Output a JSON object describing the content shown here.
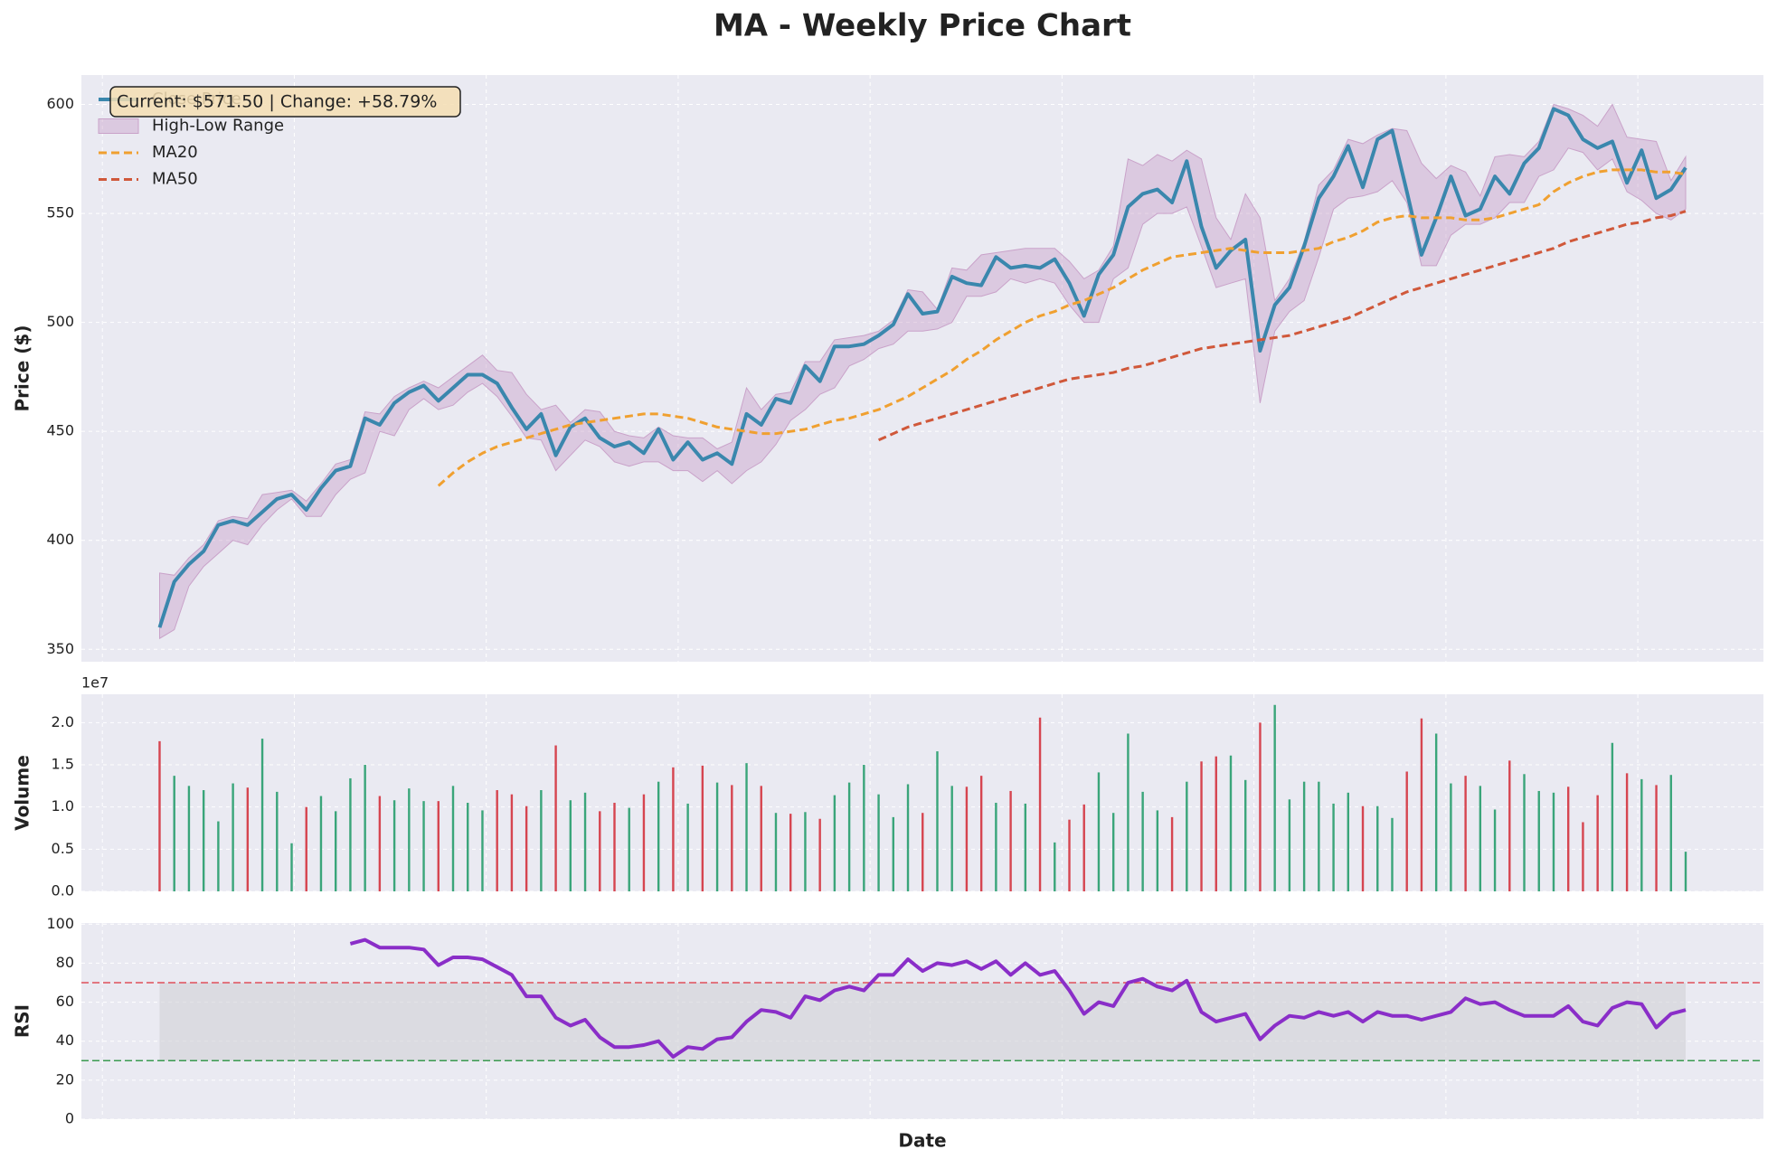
{
  "chart_data": [
    {
      "type": "line",
      "title": "MA - Weekly Price Chart",
      "ylabel": "Price ($)",
      "annotation": "Current: $571.50 | Change: +58.79%",
      "ylim": [
        344.3,
        613.5
      ],
      "yticks": [
        350,
        400,
        450,
        500,
        550,
        600
      ],
      "grid": true,
      "legend": "upper left",
      "range": {
        "name": "High-Low Range",
        "color": "#c9a2c9",
        "high": [
          385,
          384,
          392,
          398,
          409,
          411,
          410,
          421,
          422,
          423,
          418,
          426,
          435,
          437,
          459,
          458,
          466,
          470,
          473,
          470,
          475,
          480,
          485,
          478,
          477,
          467,
          460,
          462,
          454,
          460,
          459,
          450,
          448,
          447,
          452,
          448,
          447,
          447,
          442,
          445,
          470,
          460,
          467,
          468,
          482,
          482,
          492,
          493,
          494,
          496,
          501,
          515,
          514,
          506,
          525,
          524,
          531,
          532,
          533,
          534,
          534,
          534,
          528,
          520,
          524,
          535,
          575,
          572,
          577,
          574,
          579,
          575,
          548,
          538,
          559,
          548,
          510,
          520,
          537,
          563,
          570,
          584,
          582,
          586,
          589,
          588,
          573,
          566,
          572,
          569,
          558,
          576,
          577,
          576,
          583,
          600,
          598,
          595,
          590,
          600,
          585,
          584,
          583,
          565,
          576
        ],
        "low": [
          355,
          359,
          379,
          388,
          394,
          400,
          398,
          407,
          414,
          419,
          411,
          411,
          421,
          428,
          431,
          450,
          448,
          460,
          465,
          460,
          462,
          468,
          472,
          466,
          457,
          447,
          446,
          432,
          439,
          446,
          443,
          436,
          434,
          436,
          436,
          432,
          432,
          427,
          432,
          426,
          432,
          436,
          444,
          455,
          460,
          467,
          470,
          480,
          483,
          488,
          490,
          496,
          496,
          497,
          500,
          512,
          512,
          514,
          520,
          518,
          520,
          518,
          508,
          500,
          500,
          520,
          525,
          545,
          550,
          550,
          553,
          535,
          516,
          518,
          520,
          463,
          496,
          505,
          510,
          530,
          552,
          557,
          558,
          560,
          565,
          555,
          526,
          526,
          540,
          545,
          545,
          548,
          555,
          555,
          567,
          570,
          580,
          578,
          570,
          575,
          560,
          556,
          550,
          547,
          552
        ]
      },
      "series": [
        {
          "name": "Close Price",
          "color": "#3a87ad",
          "style": "solid",
          "values": [
            360,
            381,
            389,
            395,
            407,
            409,
            407,
            413,
            419,
            421,
            414,
            424,
            432,
            434,
            456,
            453,
            463,
            468,
            471,
            464,
            470,
            476,
            476,
            472,
            461,
            451,
            458,
            439,
            452,
            456,
            447,
            443,
            445,
            440,
            451,
            437,
            445,
            437,
            440,
            435,
            458,
            453,
            465,
            463,
            480,
            473,
            489,
            489,
            490,
            494,
            499,
            513,
            504,
            505,
            521,
            518,
            517,
            530,
            525,
            526,
            525,
            529,
            518,
            503,
            522,
            531,
            553,
            559,
            561,
            555,
            574,
            544,
            525,
            533,
            538,
            487,
            508,
            516,
            535,
            557,
            567,
            581,
            562,
            584,
            588,
            560,
            531,
            548,
            567,
            549,
            552,
            567,
            559,
            573,
            580,
            598,
            595,
            584,
            580,
            583,
            564,
            579,
            557,
            561,
            571
          ]
        },
        {
          "name": "MA20",
          "color": "#f0a030",
          "style": "dashed",
          "values": [
            null,
            null,
            null,
            null,
            null,
            null,
            null,
            null,
            null,
            null,
            null,
            null,
            null,
            null,
            null,
            null,
            null,
            null,
            null,
            425,
            431,
            436,
            440,
            443,
            445,
            447,
            449,
            451,
            453,
            454,
            455,
            456,
            457,
            458,
            458,
            457,
            456,
            454,
            452,
            451,
            450,
            449,
            449,
            450,
            451,
            453,
            455,
            456,
            458,
            460,
            463,
            466,
            470,
            474,
            478,
            483,
            487,
            492,
            496,
            500,
            503,
            505,
            508,
            510,
            513,
            516,
            520,
            524,
            527,
            530,
            531,
            532,
            533,
            534,
            533,
            532,
            532,
            532,
            533,
            534,
            537,
            539,
            542,
            546,
            548,
            549,
            548,
            548,
            548,
            547,
            547,
            548,
            550,
            552,
            554,
            560,
            564,
            567,
            569,
            570,
            570,
            570,
            569,
            569,
            568
          ]
        },
        {
          "name": "MA50",
          "color": "#d0583a",
          "style": "dashed",
          "values": [
            null,
            null,
            null,
            null,
            null,
            null,
            null,
            null,
            null,
            null,
            null,
            null,
            null,
            null,
            null,
            null,
            null,
            null,
            null,
            null,
            null,
            null,
            null,
            null,
            null,
            null,
            null,
            null,
            null,
            null,
            null,
            null,
            null,
            null,
            null,
            null,
            null,
            null,
            null,
            null,
            null,
            null,
            null,
            null,
            null,
            null,
            null,
            null,
            null,
            446,
            449,
            452,
            454,
            456,
            458,
            460,
            462,
            464,
            466,
            468,
            470,
            472,
            474,
            475,
            476,
            477,
            479,
            480,
            482,
            484,
            486,
            488,
            489,
            490,
            491,
            492,
            493,
            494,
            496,
            498,
            500,
            502,
            505,
            508,
            511,
            514,
            516,
            518,
            520,
            522,
            524,
            526,
            528,
            530,
            532,
            534,
            537,
            539,
            541,
            543,
            545,
            546,
            548,
            549,
            551
          ]
        }
      ]
    },
    {
      "type": "bar",
      "ylabel": "Volume",
      "offset_label": "1e7",
      "up_color": "#3aa57a",
      "down_color": "#d64550",
      "ylim": [
        0,
        2.336
      ],
      "yticks": [
        {
          "value": 0,
          "label": "0.0"
        },
        {
          "value": 0.5,
          "label": "0.5"
        },
        {
          "value": 1,
          "label": "1.0"
        },
        {
          "value": 1.5,
          "label": "1.5"
        },
        {
          "value": 2,
          "label": "2.0"
        }
      ],
      "grid": true,
      "values": [
        1.78,
        1.37,
        1.25,
        1.2,
        0.83,
        1.28,
        1.23,
        1.81,
        1.18,
        0.57,
        1.0,
        1.13,
        0.95,
        1.34,
        1.5,
        1.13,
        1.08,
        1.22,
        1.07,
        1.07,
        1.25,
        1.05,
        0.96,
        1.2,
        1.15,
        1.01,
        1.2,
        1.73,
        1.08,
        1.17,
        0.95,
        1.05,
        0.99,
        1.15,
        1.3,
        1.47,
        1.04,
        1.49,
        1.29,
        1.26,
        1.52,
        1.25,
        0.93,
        0.92,
        0.94,
        0.86,
        1.14,
        1.29,
        1.5,
        1.15,
        0.88,
        1.27,
        0.93,
        1.66,
        1.25,
        1.24,
        1.37,
        1.05,
        1.19,
        1.04,
        2.06,
        0.58,
        0.85,
        1.03,
        1.41,
        0.93,
        1.87,
        1.18,
        0.96,
        0.88,
        1.3,
        1.54,
        1.6,
        1.61,
        1.32,
        2.0,
        2.21,
        1.09,
        1.3,
        1.3,
        1.04,
        1.17,
        1.01,
        1.01,
        0.87,
        1.42,
        2.05,
        1.87,
        1.28,
        1.37,
        1.25,
        0.97,
        1.55,
        1.39,
        1.19,
        1.17,
        1.24,
        0.82,
        1.14,
        1.76,
        1.4,
        1.33,
        1.26,
        1.38,
        0.47
      ]
    },
    {
      "type": "line",
      "ylabel": "RSI",
      "xlabel": "Date",
      "ylim": [
        0,
        100.6
      ],
      "yticks": [
        0,
        20,
        40,
        60,
        80,
        100
      ],
      "grid": true,
      "overbought": 70,
      "overbought_color": "#e0505a",
      "oversold": 30,
      "oversold_color": "#3a9a50",
      "band_color": "#d0d0d6",
      "series": [
        {
          "name": "RSI",
          "color": "#8a2ec8",
          "style": "solid",
          "values": [
            null,
            null,
            null,
            null,
            null,
            null,
            null,
            null,
            null,
            null,
            null,
            null,
            null,
            90,
            92,
            88,
            88,
            88,
            87,
            79,
            83,
            83,
            82,
            78,
            74,
            63,
            63,
            52,
            48,
            51,
            42,
            37,
            37,
            38,
            40,
            32,
            37,
            36,
            41,
            42,
            50,
            56,
            55,
            52,
            63,
            61,
            66,
            68,
            66,
            74,
            74,
            82,
            76,
            80,
            79,
            81,
            77,
            81,
            74,
            80,
            74,
            76,
            66,
            54,
            60,
            58,
            70,
            72,
            68,
            66,
            71,
            55,
            50,
            52,
            54,
            41,
            48,
            53,
            52,
            55,
            53,
            55,
            50,
            55,
            53,
            53,
            51,
            53,
            55,
            62,
            59,
            60,
            56,
            53,
            53,
            53,
            58,
            50,
            48,
            57,
            60,
            59,
            47,
            54,
            56
          ]
        }
      ]
    }
  ]
}
